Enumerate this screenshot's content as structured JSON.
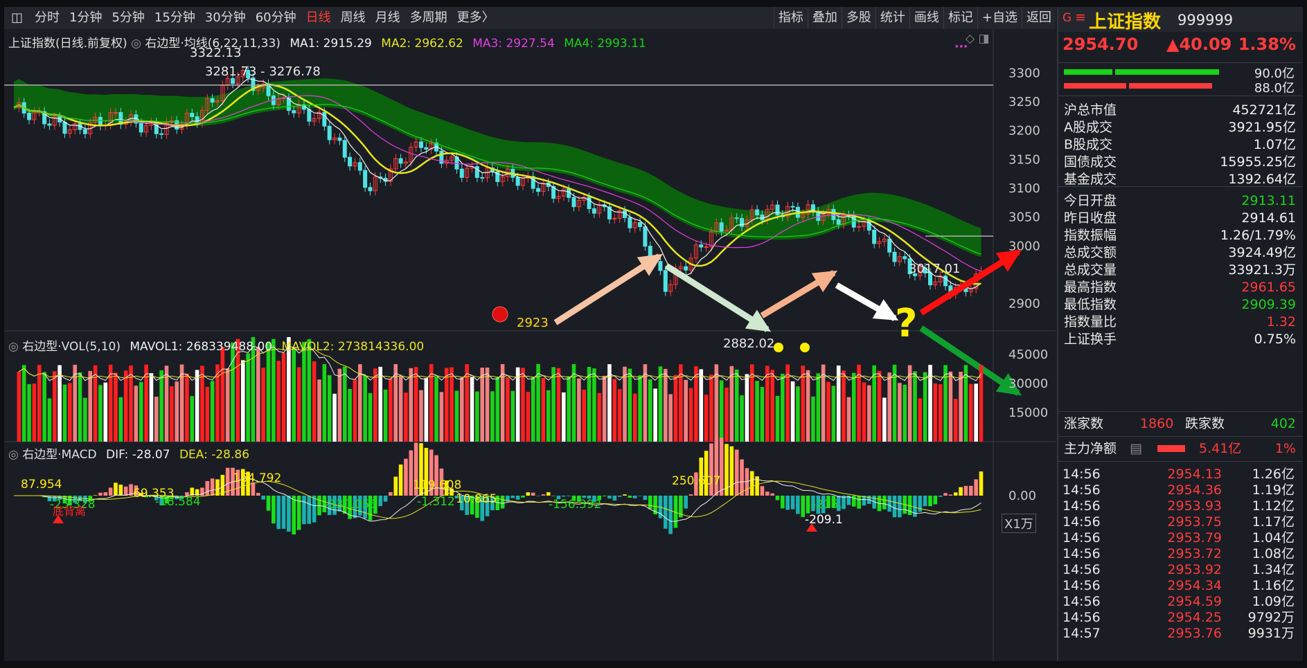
{
  "toolbar": {
    "left_items": [
      "分时",
      "1分钟",
      "5分钟",
      "15分钟",
      "30分钟",
      "60分钟",
      "日线",
      "周线",
      "月线",
      "多周期",
      "更多〉"
    ],
    "active": "日线",
    "right_items": [
      "指标",
      "叠加",
      "多股",
      "统计",
      "画线",
      "标记",
      "+自选",
      "返回"
    ]
  },
  "main_chart": {
    "title": "上证指数(日线.前复权)",
    "indicator": "右边型·均线(6,22,11,33)",
    "ma1": "MA1: 2915.29",
    "ma2": "MA2: 2962.62",
    "ma3": "MA3: 2927.54",
    "ma4": "MA4: 2993.11",
    "y_ticks": [
      "3300",
      "3250",
      "3200",
      "3150",
      "3100",
      "3050",
      "3000",
      "2900"
    ],
    "annotations": {
      "high": "3322.13",
      "range": "3281.73 - 3276.78",
      "level": "3017.01",
      "low_mark": "2923",
      "low2": "2882.02"
    }
  },
  "volume_chart": {
    "title": "右边型·VOL(5,10)",
    "mavol1": "MAVOL1: 268339488.00",
    "mavol2": "MAVOL2: 273814336.00",
    "y_ticks": [
      "45000",
      "30000",
      "15000"
    ],
    "unit": "X1万"
  },
  "macd_chart": {
    "title": "右边型·MACD",
    "dif": "DIF: -28.07",
    "dea": "DEA: -28.86",
    "zero": "0.00",
    "labels": [
      "87.954",
      "-25.328",
      "69.353",
      "-18.584",
      "164.792",
      "-330.056",
      "119.608",
      "-1.312",
      "10.865",
      "-156.392",
      "250.607",
      "-215.",
      "-209.1"
    ],
    "buy_text": "底背离"
  },
  "right_panel": {
    "name": "上证指数",
    "code": "999999",
    "price": "2954.70",
    "change": "▲40.09",
    "pct": "1.38%",
    "bar1": "90.0亿",
    "bar2": "88.0亿",
    "stats": [
      {
        "k": "沪总市值",
        "v": "452721亿",
        "c": "white"
      },
      {
        "k": "A股成交",
        "v": "3921.95亿",
        "c": "white"
      },
      {
        "k": "B股成交",
        "v": "1.07亿",
        "c": "white"
      },
      {
        "k": "国债成交",
        "v": "15955.25亿",
        "c": "white"
      },
      {
        "k": "基金成交",
        "v": "1392.64亿",
        "c": "white"
      },
      {
        "k": "今日开盘",
        "v": "2913.11",
        "c": "green"
      },
      {
        "k": "昨日收盘",
        "v": "2914.61",
        "c": "white"
      },
      {
        "k": "指数振幅",
        "v": "1.26/1.79%",
        "c": "white"
      },
      {
        "k": "总成交额",
        "v": "3924.49亿",
        "c": "white"
      },
      {
        "k": "总成交量",
        "v": "33921.3万",
        "c": "white"
      },
      {
        "k": "最高指数",
        "v": "2961.65",
        "c": "red"
      },
      {
        "k": "最低指数",
        "v": "2909.39",
        "c": "green"
      },
      {
        "k": "指数量比",
        "v": "1.32",
        "c": "red"
      },
      {
        "k": "上证换手",
        "v": "0.75%",
        "c": "white"
      }
    ],
    "up_label": "涨家数",
    "up": "1860",
    "down_label": "跌家数",
    "down": "402",
    "flow_label": "主力净额",
    "flow_value": "5.41亿",
    "flow_pct": "1%",
    "ticks": [
      [
        "14:56",
        "2954.13",
        "1.26亿"
      ],
      [
        "14:56",
        "2954.36",
        "1.19亿"
      ],
      [
        "14:56",
        "2953.93",
        "1.12亿"
      ],
      [
        "14:56",
        "2953.75",
        "1.17亿"
      ],
      [
        "14:56",
        "2953.79",
        "1.04亿"
      ],
      [
        "14:56",
        "2953.72",
        "1.08亿"
      ],
      [
        "14:56",
        "2953.92",
        "1.34亿"
      ],
      [
        "14:56",
        "2954.34",
        "1.16亿"
      ],
      [
        "14:56",
        "2954.59",
        "1.09亿"
      ],
      [
        "14:56",
        "2954.25",
        "9792万"
      ],
      [
        "14:57",
        "2953.76",
        "9931万"
      ]
    ]
  },
  "colors": {
    "up": "#ff3b3b",
    "down": "#19d219",
    "ma2": "#e6e61a",
    "ma3": "#e040e0",
    "ma4": "#19d219",
    "cyan": "#4fe3e3"
  }
}
